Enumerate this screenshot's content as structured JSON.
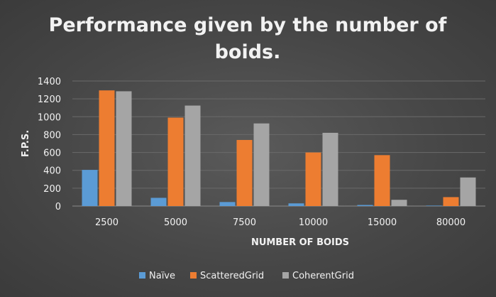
{
  "chart_data": {
    "type": "bar",
    "title": "Performance given by the number of boids.",
    "title_lines": [
      "Performance given by the number of",
      "boids."
    ],
    "xlabel": "NUMBER OF BOIDS",
    "ylabel": "F.P.S.",
    "categories": [
      "2500",
      "5000",
      "7500",
      "10000",
      "15000",
      "80000"
    ],
    "ylim": [
      0,
      1400
    ],
    "yticks": [
      "0",
      "200",
      "400",
      "600",
      "800",
      "1000",
      "1200",
      "1400"
    ],
    "grid": true,
    "legend_position": "bottom",
    "series": [
      {
        "name": "Naïve",
        "color": "#5b9bd5",
        "values": [
          405,
          92,
          45,
          30,
          12,
          5
        ]
      },
      {
        "name": "ScatteredGrid",
        "color": "#ed7d31",
        "values": [
          1295,
          990,
          740,
          600,
          570,
          100
        ]
      },
      {
        "name": "CoherentGrid",
        "color": "#a5a5a5",
        "values": [
          1285,
          1125,
          925,
          820,
          70,
          320
        ]
      }
    ]
  }
}
